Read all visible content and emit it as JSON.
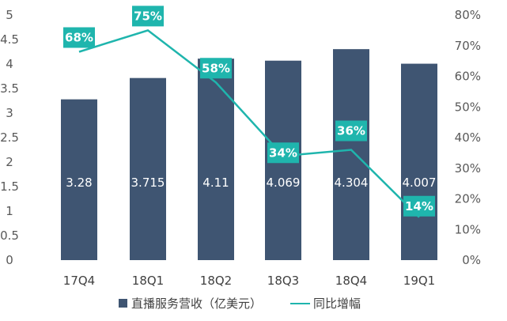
{
  "colors": {
    "bar": "#3f5572",
    "line": "#1fb5ad",
    "label_box": "#1fb5ad",
    "tick": "#595959"
  },
  "chart_data": {
    "type": "bar",
    "categories": [
      "17Q4",
      "18Q1",
      "18Q2",
      "18Q3",
      "18Q4",
      "19Q1"
    ],
    "series": [
      {
        "name": "直播服务营收（亿美元）",
        "type": "bar",
        "axis": "left",
        "values": [
          3.28,
          3.715,
          4.11,
          4.069,
          4.304,
          4.007
        ],
        "labels": [
          "3.28",
          "3.715",
          "4.11",
          "4.069",
          "4.304",
          "4.007"
        ]
      },
      {
        "name": "同比增幅",
        "type": "line",
        "axis": "right",
        "values": [
          68,
          75,
          58,
          34,
          36,
          14
        ],
        "labels": [
          "68%",
          "75%",
          "58%",
          "34%",
          "36%",
          "14%"
        ]
      }
    ],
    "y_left": {
      "min": 0,
      "max": 5,
      "ticks": [
        "0",
        "0.5",
        "1",
        "1.5",
        "2",
        "2.5",
        "3",
        "3.5",
        "4",
        "4.5",
        "5"
      ]
    },
    "y_right": {
      "min": 0,
      "max": 80,
      "ticks": [
        "0%",
        "10%",
        "20%",
        "30%",
        "40%",
        "50%",
        "60%",
        "70%",
        "80%"
      ]
    },
    "grid": false,
    "legend": "bottom"
  }
}
